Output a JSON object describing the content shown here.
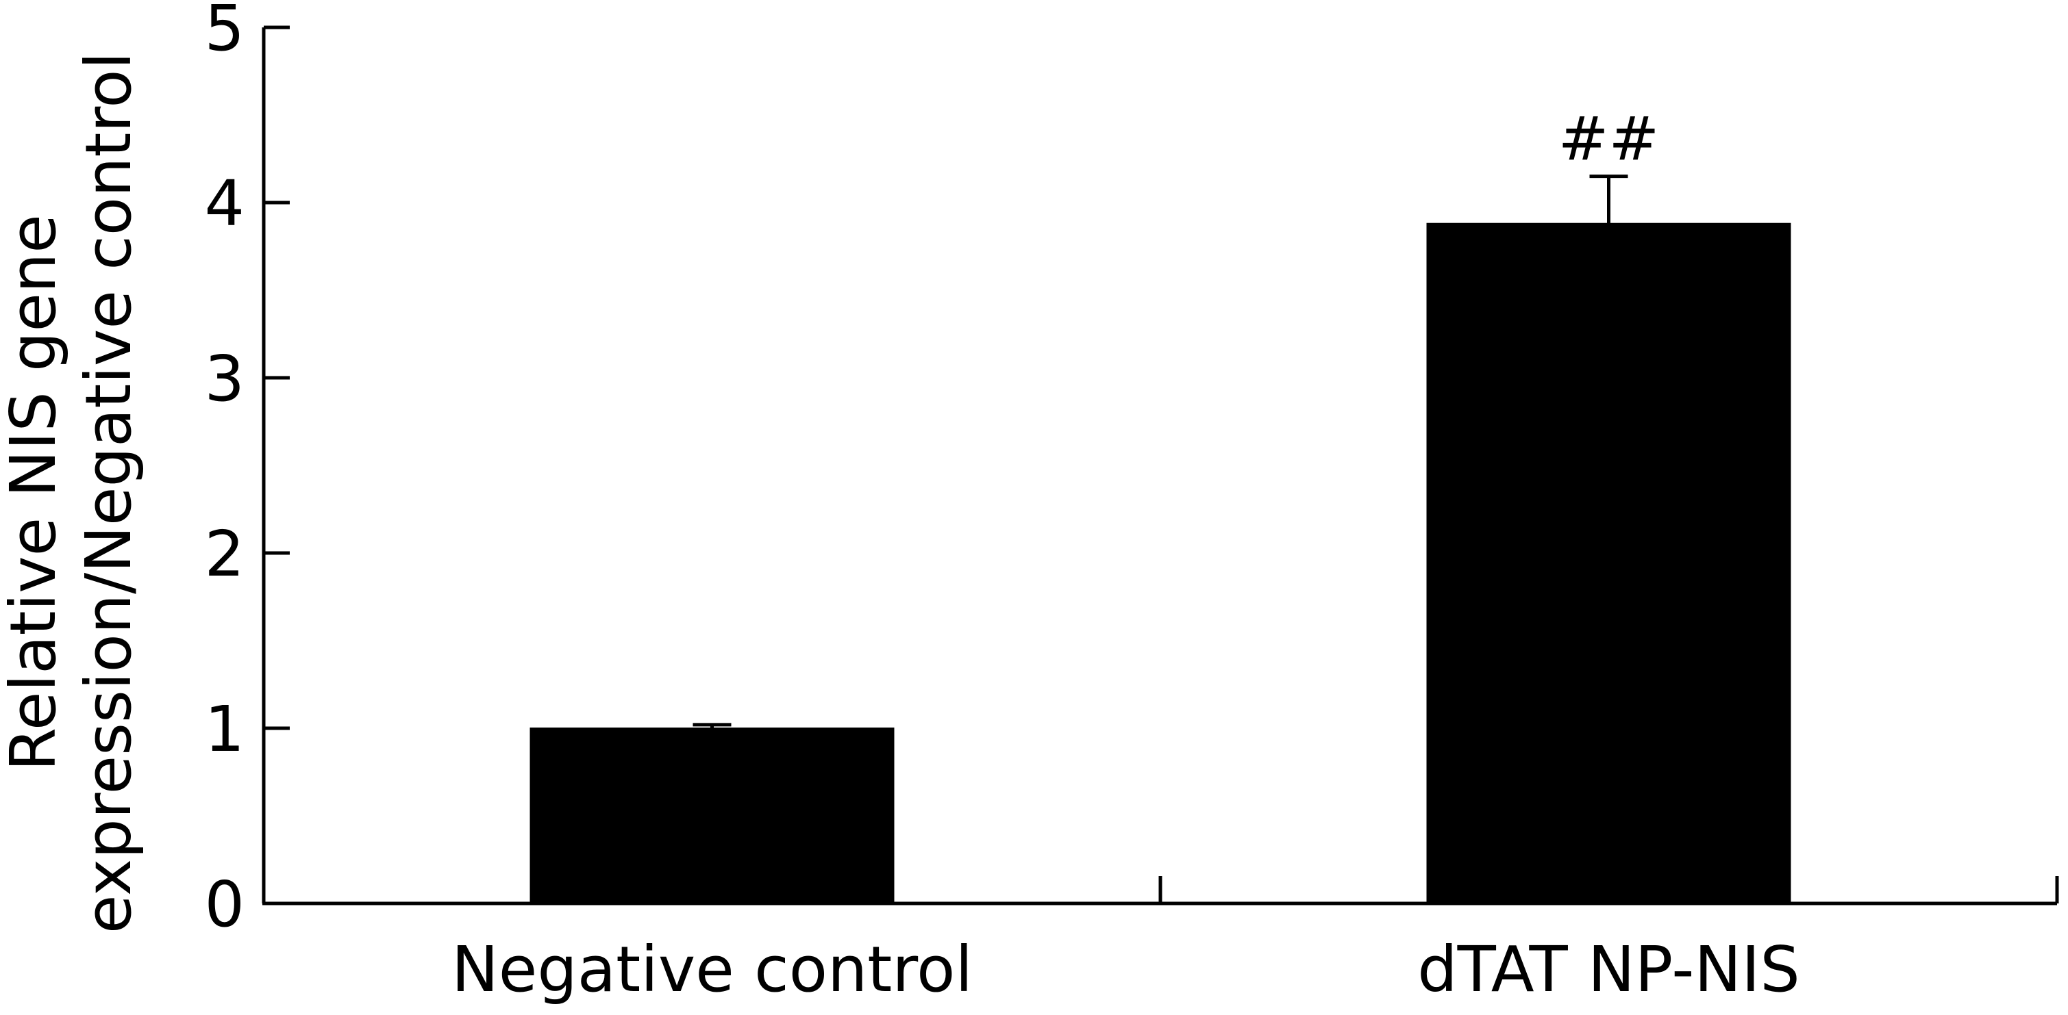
{
  "chart_data": {
    "type": "bar",
    "categories": [
      "Negative control",
      "dTAT NP-NIS"
    ],
    "series": [
      {
        "values": [
          1.0,
          3.88
        ],
        "error": [
          0.02,
          0.27
        ],
        "color": "#000000"
      }
    ],
    "annotations": [
      "",
      "##"
    ],
    "title": "",
    "xlabel": "",
    "ylabel_lines": [
      "Relative NIS gene",
      "expression/Negative control"
    ],
    "ylim": [
      0,
      5
    ],
    "yticks": [
      0,
      1,
      2,
      3,
      4,
      5
    ],
    "grid": false,
    "legend": "none"
  }
}
